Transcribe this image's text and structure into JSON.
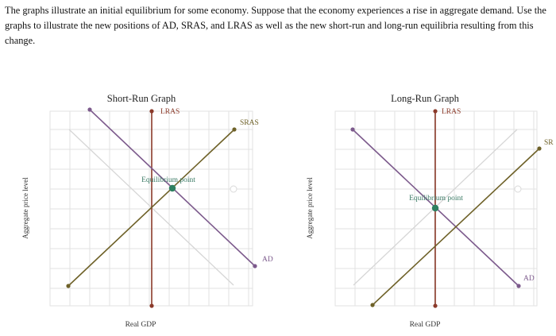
{
  "question": {
    "text": "The graphs illustrate an initial equilibrium for some economy. Suppose that the economy experiences a rise in aggregate demand. Use the graphs to illustrate the new positions of AD, SRAS, and LRAS as well as the new short-run and long-run equilibria resulting from this change."
  },
  "colors": {
    "lras": "#8b3a2a",
    "sras": "#6e6128",
    "ad": "#7c5a8c",
    "equilibrium": "#2e8060",
    "grid": "#e2e2e2",
    "reference_line": "#d6d6d6",
    "equilibrium_label": "#3b7a65"
  },
  "short_run_graph": {
    "title": "Short-Run Graph",
    "x_axis_label": "Real GDP",
    "y_axis_label": "Aggregate price level",
    "lras_label": "LRAS",
    "sras_label": "SRAS",
    "ad_label": "AD",
    "equilibrium_label": "Equilibrium point"
  },
  "long_run_graph": {
    "title": "Long-Run Graph",
    "x_axis_label": "Real GDP",
    "y_axis_label": "Aggregate price level",
    "lras_label": "LRAS",
    "sras_label": "SR",
    "ad_label": "AD",
    "equilibrium_label": "Equilibrium point"
  }
}
